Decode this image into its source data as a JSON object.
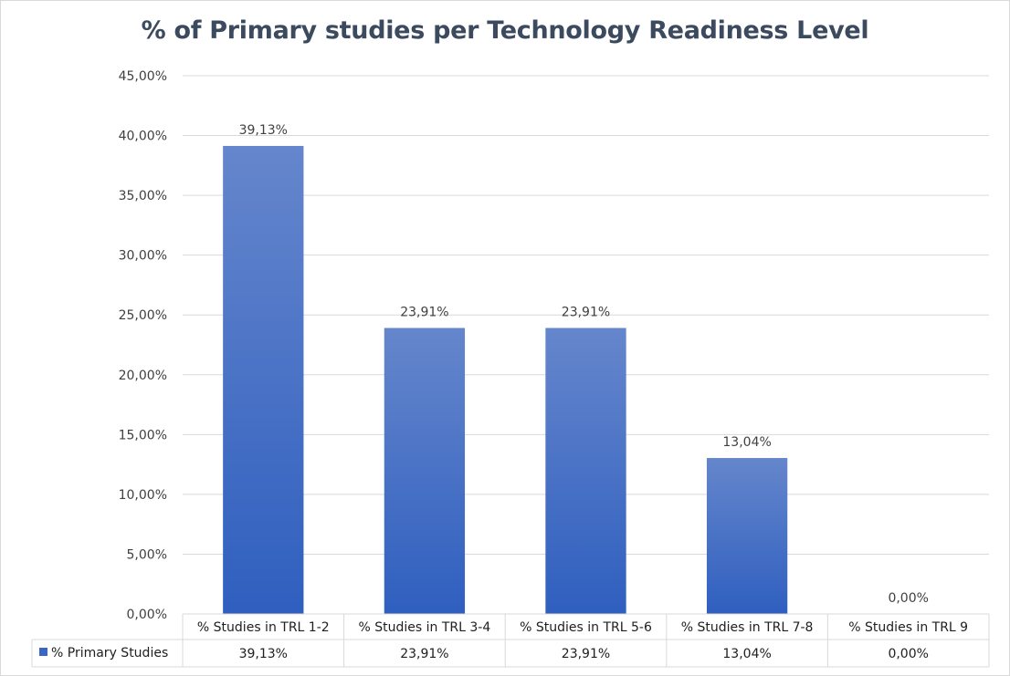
{
  "chart_data": {
    "type": "bar",
    "title": "% of Primary studies per Technology Readiness Level",
    "categories": [
      "% Studies in TRL 1-2",
      "% Studies in TRL 3-4",
      "% Studies in TRL 5-6",
      "% Studies in TRL 7-8",
      "% Studies in TRL 9"
    ],
    "series": [
      {
        "name": "% Primary Studies",
        "values": [
          39.13,
          23.91,
          23.91,
          13.04,
          0.0
        ],
        "labels": [
          "39,13%",
          "23,91%",
          "23,91%",
          "13,04%",
          "0,00%"
        ]
      }
    ],
    "ylim": [
      0,
      45
    ],
    "yticks": [
      0,
      5,
      10,
      15,
      20,
      25,
      30,
      35,
      40,
      45
    ],
    "ytick_labels": [
      "0,00%",
      "5,00%",
      "10,00%",
      "15,00%",
      "20,00%",
      "25,00%",
      "30,00%",
      "35,00%",
      "40,00%",
      "45,00%"
    ],
    "xlabel": "",
    "ylabel": "",
    "grid": true,
    "legend": "data-table",
    "colors": {
      "bar_top": "#6586cc",
      "bar_bottom": "#2f5fbf",
      "legend_key": "#3a67c6",
      "grid": "#d9d9d9"
    }
  }
}
